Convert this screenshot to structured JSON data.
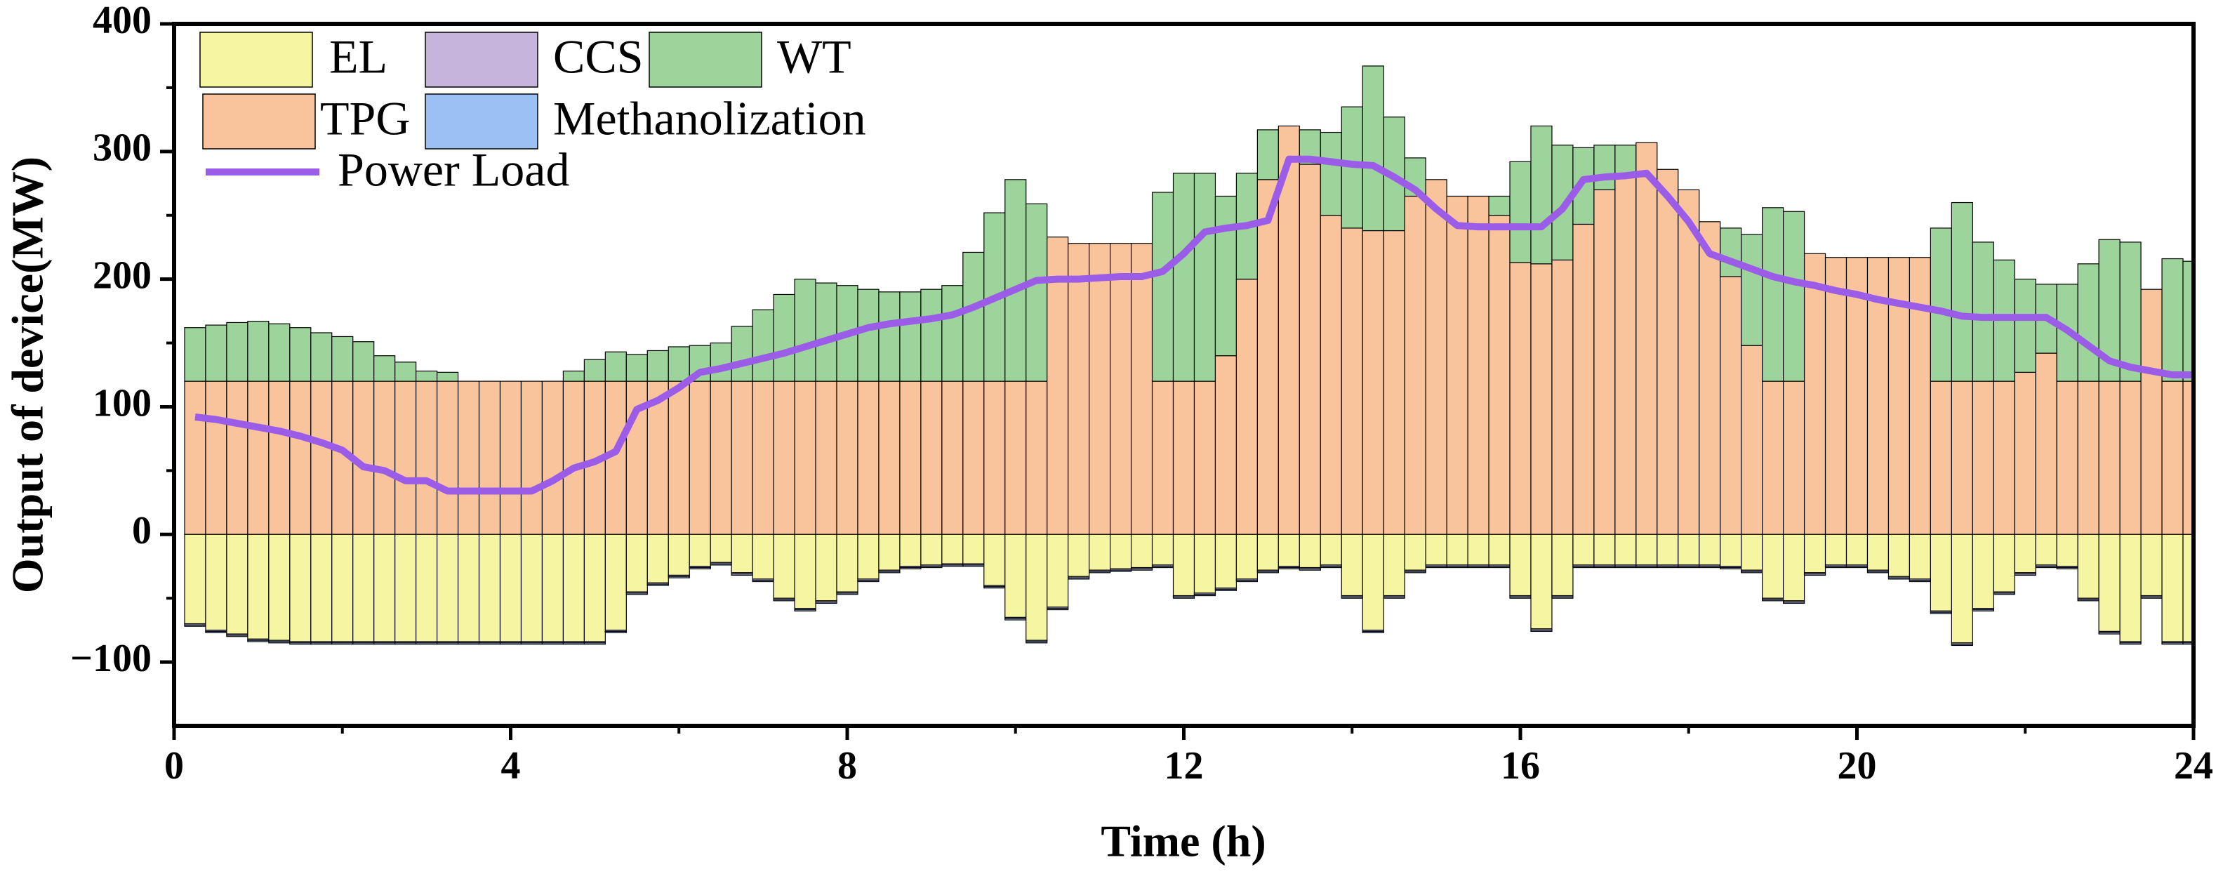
{
  "chart_data": {
    "type": "stacked-bar-line",
    "xlabel": "Time (h)",
    "ylabel": "Output of device(MW)",
    "xlim": [
      0,
      24
    ],
    "xticks": [
      0,
      4,
      8,
      12,
      16,
      20,
      24
    ],
    "ylim": [
      -150,
      400
    ],
    "yticks": [
      -100,
      0,
      100,
      200,
      300,
      400
    ],
    "yticklabels": [
      {
        "value": -100,
        "label": "−100"
      }
    ],
    "legend": "upper left",
    "x": [
      0.25,
      0.5,
      0.75,
      1,
      1.25,
      1.5,
      1.75,
      2,
      2.25,
      2.5,
      2.75,
      3,
      3.25,
      3.5,
      3.75,
      4,
      4.25,
      4.5,
      4.75,
      5,
      5.25,
      5.5,
      5.75,
      6,
      6.25,
      6.5,
      6.75,
      7,
      7.25,
      7.5,
      7.75,
      8,
      8.25,
      8.5,
      8.75,
      9,
      9.25,
      9.5,
      9.75,
      10,
      10.25,
      10.5,
      10.75,
      11,
      11.25,
      11.5,
      11.75,
      12,
      12.25,
      12.5,
      12.75,
      13,
      13.25,
      13.5,
      13.75,
      14,
      14.25,
      14.5,
      14.75,
      15,
      15.25,
      15.5,
      15.75,
      16,
      16.25,
      16.5,
      16.75,
      17,
      17.25,
      17.5,
      17.75,
      18,
      18.25,
      18.5,
      18.75,
      19,
      19.25,
      19.5,
      19.75,
      20,
      20.25,
      20.5,
      20.75,
      21,
      21.25,
      21.5,
      21.75,
      22,
      22.25,
      22.5,
      22.75,
      23,
      23.25,
      23.5,
      23.75,
      24
    ],
    "series": [
      {
        "name": "EL",
        "color": "#f6f6a2",
        "values": [
          -70,
          -75,
          -78,
          -82,
          -83,
          -84,
          -84,
          -84,
          -84,
          -84,
          -84,
          -84,
          -84,
          -84,
          -84,
          -84,
          -84,
          -84,
          -84,
          -84,
          -75,
          -45,
          -38,
          -32,
          -25,
          -22,
          -30,
          -35,
          -50,
          -58,
          -52,
          -45,
          -35,
          -28,
          -25,
          -24,
          -23,
          -23,
          -40,
          -65,
          -83,
          -57,
          -33,
          -28,
          -27,
          -26,
          -24,
          -48,
          -46,
          -42,
          -35,
          -28,
          -25,
          -26,
          -24,
          -48,
          -75,
          -48,
          -28,
          -24,
          -24,
          -24,
          -24,
          -48,
          -74,
          -48,
          -24,
          -24,
          -24,
          -24,
          -24,
          -24,
          -24,
          -25,
          -28,
          -50,
          -52,
          -30,
          -24,
          -24,
          -28,
          -33,
          -35,
          -60,
          -85,
          -58,
          -45,
          -30,
          -24,
          -25,
          -50,
          -76,
          -84,
          -48,
          -84,
          -84
        ]
      },
      {
        "name": "CCS",
        "color": "#c6b4dd",
        "values": [
          -1,
          -1,
          -1,
          -1,
          -1,
          -1,
          -1,
          -1,
          -1,
          -1,
          -1,
          -1,
          -1,
          -1,
          -1,
          -1,
          -1,
          -1,
          -1,
          -1,
          -1,
          -1,
          -1,
          -1,
          -1,
          -1,
          -1,
          -1,
          -1,
          -1,
          -1,
          -1,
          -1,
          -1,
          -1,
          -1,
          -1,
          -1,
          -1,
          -1,
          -1,
          -1,
          -1,
          -1,
          -1,
          -1,
          -1,
          -1,
          -1,
          -1,
          -1,
          -1,
          -1,
          -1,
          -1,
          -1,
          -1,
          -1,
          -1,
          -1,
          -1,
          -1,
          -1,
          -1,
          -1,
          -1,
          -1,
          -1,
          -1,
          -1,
          -1,
          -1,
          -1,
          -1,
          -1,
          -1,
          -1,
          -1,
          -1,
          -1,
          -1,
          -1,
          -1,
          -1,
          -1,
          -1,
          -1,
          -1,
          -1,
          -1,
          -1,
          -1,
          -1,
          -1,
          -1,
          -1
        ]
      },
      {
        "name": "WT",
        "color": "#9dd49b",
        "values": [
          42,
          44,
          46,
          47,
          45,
          42,
          38,
          35,
          31,
          20,
          15,
          8,
          7,
          0,
          0,
          0,
          0,
          0,
          8,
          17,
          23,
          21,
          24,
          27,
          28,
          30,
          43,
          56,
          68,
          80,
          77,
          75,
          72,
          70,
          70,
          72,
          75,
          101,
          132,
          158,
          139,
          0,
          0,
          0,
          0,
          0,
          148,
          163,
          163,
          125,
          83,
          39,
          0,
          27,
          65,
          95,
          129,
          89,
          30,
          0,
          0,
          0,
          15,
          79,
          108,
          90,
          60,
          35,
          25,
          0,
          0,
          0,
          0,
          38,
          87,
          136,
          133,
          0,
          0,
          0,
          0,
          0,
          0,
          120,
          140,
          109,
          95,
          73,
          54,
          76,
          92,
          111,
          109,
          0,
          96,
          94
        ]
      },
      {
        "name": "TPG",
        "color": "#f9c49b",
        "values": [
          120,
          120,
          120,
          120,
          120,
          120,
          120,
          120,
          120,
          120,
          120,
          120,
          120,
          120,
          120,
          120,
          120,
          120,
          120,
          120,
          120,
          120,
          120,
          120,
          120,
          120,
          120,
          120,
          120,
          120,
          120,
          120,
          120,
          120,
          120,
          120,
          120,
          120,
          120,
          120,
          120,
          233,
          228,
          228,
          228,
          228,
          120,
          120,
          120,
          140,
          200,
          278,
          320,
          290,
          250,
          240,
          238,
          238,
          265,
          278,
          265,
          265,
          250,
          213,
          212,
          215,
          243,
          270,
          280,
          307,
          286,
          270,
          245,
          202,
          148,
          120,
          120,
          220,
          217,
          217,
          217,
          217,
          217,
          120,
          120,
          120,
          120,
          127,
          142,
          120,
          120,
          120,
          120,
          192,
          120,
          120
        ]
      },
      {
        "name": "Methanolization",
        "color": "#9dc0f4",
        "values": [
          -1,
          -1,
          -1,
          -1,
          -1,
          -1,
          -1,
          -1,
          -1,
          -1,
          -1,
          -1,
          -1,
          -1,
          -1,
          -1,
          -1,
          -1,
          -1,
          -1,
          -1,
          -1,
          -1,
          -1,
          -1,
          -1,
          -1,
          -1,
          -1,
          -1,
          -1,
          -1,
          -1,
          -1,
          -1,
          -1,
          -1,
          -1,
          -1,
          -1,
          -1,
          -1,
          -1,
          -1,
          -1,
          -1,
          -1,
          -1,
          -1,
          -1,
          -1,
          -1,
          -1,
          -1,
          -1,
          -1,
          -1,
          -1,
          -1,
          -1,
          -1,
          -1,
          -1,
          -1,
          -1,
          -1,
          -1,
          -1,
          -1,
          -1,
          -1,
          -1,
          -1,
          -1,
          -1,
          -1,
          -1,
          -1,
          -1,
          -1,
          -1,
          -1,
          -1,
          -1,
          -1,
          -1,
          -1,
          -1,
          -1,
          -1,
          -1,
          -1,
          -1,
          -1,
          -1,
          -1
        ]
      }
    ],
    "line": {
      "name": "Power Load",
      "color": "#9b5de8",
      "values": [
        92,
        90,
        87,
        84,
        81,
        77,
        72,
        66,
        53,
        50,
        42,
        42,
        34,
        34,
        34,
        34,
        34,
        42,
        52,
        57,
        65,
        98,
        105,
        115,
        127,
        130,
        134,
        138,
        142,
        147,
        152,
        157,
        162,
        165,
        167,
        169,
        172,
        178,
        185,
        192,
        199,
        200,
        200,
        201,
        202,
        202,
        206,
        220,
        237,
        240,
        242,
        246,
        294,
        294,
        292,
        290,
        289,
        280,
        270,
        255,
        242,
        241,
        241,
        241,
        241,
        255,
        278,
        280,
        281,
        283,
        265,
        245,
        220,
        214,
        208,
        202,
        198,
        195,
        191,
        188,
        184,
        181,
        178,
        175,
        171,
        170,
        170,
        170,
        170,
        160,
        148,
        136,
        131,
        128,
        125,
        125
      ]
    }
  }
}
